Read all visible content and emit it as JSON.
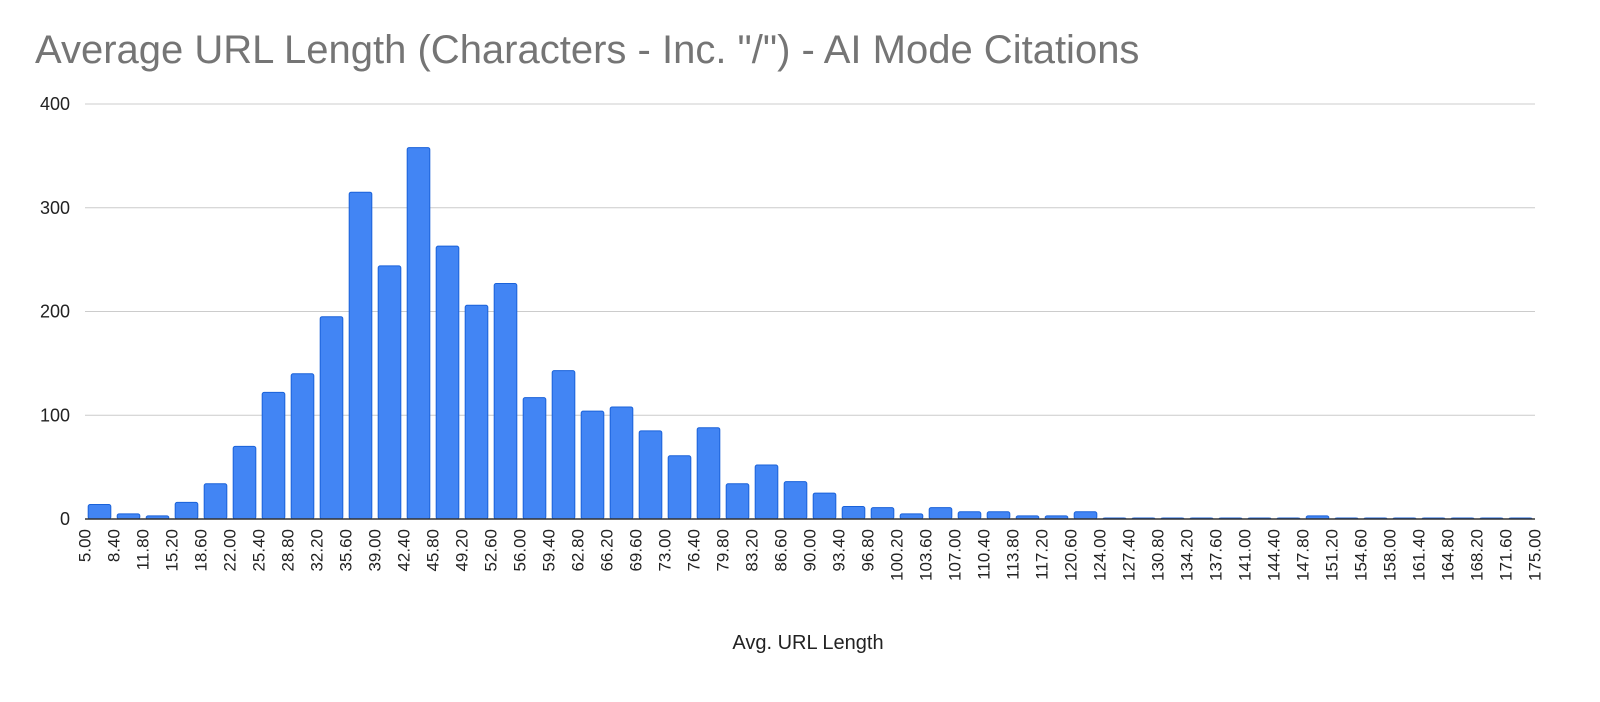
{
  "chart_data": {
    "type": "bar",
    "title": "Average URL Length (Characters - Inc. \"/\") - AI Mode Citations",
    "xlabel": "Avg. URL Length",
    "ylabel": "",
    "ylim": [
      0,
      400
    ],
    "yticks": [
      "0",
      "100",
      "200",
      "300",
      "400"
    ],
    "grid": true,
    "legend": "none",
    "bar_color": "#4285f4",
    "bar_edge_color": "#1a62d9",
    "x_tick_labels": [
      "5.00",
      "8.40",
      "11.80",
      "15.20",
      "18.60",
      "22.00",
      "25.40",
      "28.80",
      "32.20",
      "35.60",
      "39.00",
      "42.40",
      "45.80",
      "49.20",
      "52.60",
      "56.00",
      "59.40",
      "62.80",
      "66.20",
      "69.60",
      "73.00",
      "76.40",
      "79.80",
      "83.20",
      "86.60",
      "90.00",
      "93.40",
      "96.80",
      "100.20",
      "103.60",
      "107.00",
      "110.40",
      "113.80",
      "117.20",
      "120.60",
      "124.00",
      "127.40",
      "130.80",
      "134.20",
      "137.60",
      "141.00",
      "144.40",
      "147.80",
      "151.20",
      "154.60",
      "158.00",
      "161.40",
      "164.80",
      "168.20",
      "171.60",
      "175.00"
    ],
    "values": [
      14,
      5,
      3,
      16,
      34,
      70,
      122,
      140,
      195,
      315,
      244,
      358,
      263,
      206,
      227,
      117,
      143,
      104,
      108,
      85,
      61,
      88,
      34,
      52,
      36,
      25,
      12,
      11,
      5,
      11,
      7,
      7,
      3,
      3,
      7,
      1,
      1,
      1,
      1,
      1,
      1,
      1,
      3,
      1,
      1,
      1,
      1,
      1,
      1,
      1
    ]
  }
}
